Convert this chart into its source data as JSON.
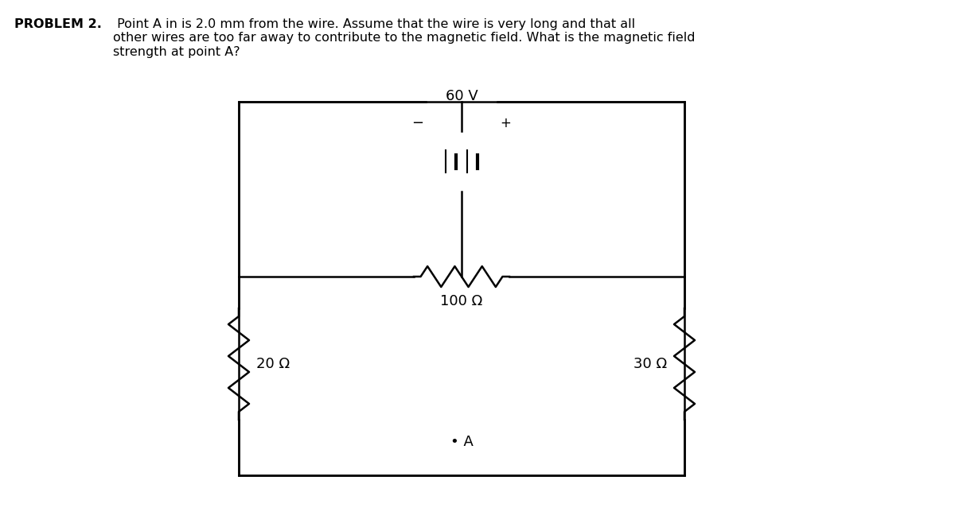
{
  "title_bold": "PROBLEM 2.",
  "title_text": " Point A in is 2.0 mm from the wire. Assume that the wire is very long and that all\nother wires are too far away to contribute to the magnetic field. What is the magnetic field\nstrength at point A?",
  "background_color": "#ffffff",
  "color": "#000000",
  "voltage_label": "60 V",
  "r1_label": "100 Ω",
  "r2_label": "20 Ω",
  "r3_label": "30 Ω",
  "point_label": "• A",
  "minus_label": "−",
  "plus_label": "+"
}
